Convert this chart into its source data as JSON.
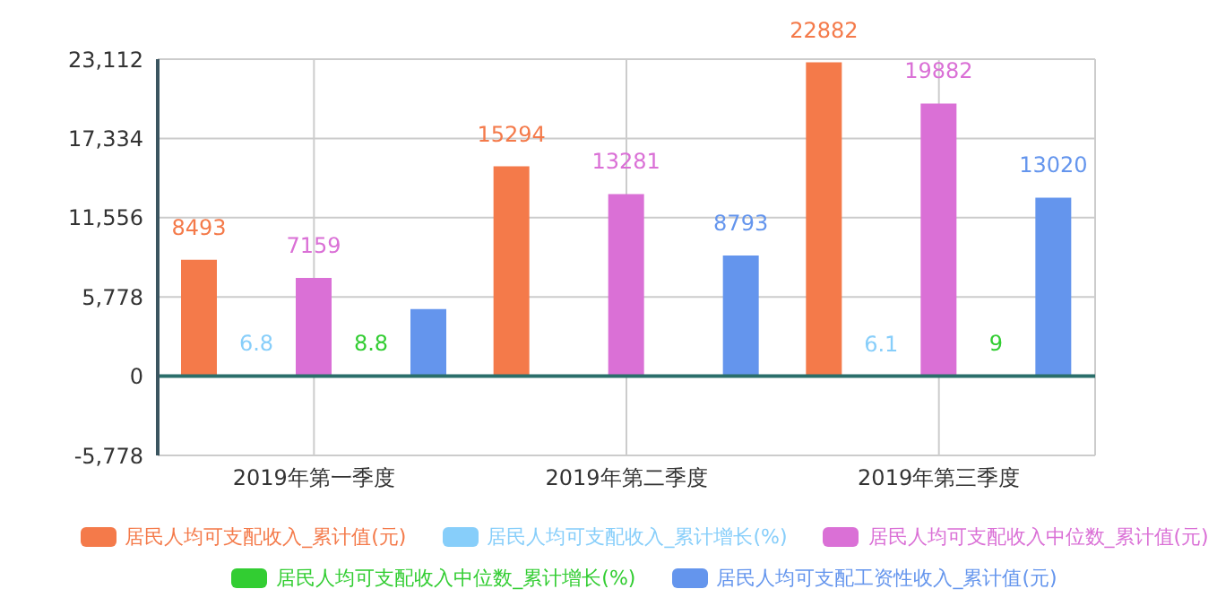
{
  "chart_data": {
    "type": "bar",
    "categories": [
      "2019年第一季度",
      "2019年第二季度",
      "2019年第三季度"
    ],
    "series": [
      {
        "name": "居民人均可支配收入_累计值(元)",
        "color": "#f47a4a",
        "values": [
          8493,
          15294,
          22882
        ],
        "value_labels": [
          "8493",
          "15294",
          "22882"
        ]
      },
      {
        "name": "居民人均可支配收入_累计增长(%)",
        "color": "#87cefa",
        "values": [
          6.8,
          null,
          6.1
        ],
        "value_labels": [
          "6.8",
          null,
          "6.1"
        ]
      },
      {
        "name": "居民人均可支配收入中位数_累计值(元)",
        "color": "#da70d6",
        "values": [
          7159,
          13281,
          19882
        ],
        "value_labels": [
          "7159",
          "13281",
          "19882"
        ]
      },
      {
        "name": "居民人均可支配收入中位数_累计增长(%)",
        "color": "#32cd32",
        "values": [
          8.8,
          null,
          9
        ],
        "value_labels": [
          "8.8",
          null,
          "9"
        ]
      },
      {
        "name": "居民人均可支配工资性收入_累计值(元)",
        "color": "#6495ed",
        "values": [
          4900,
          8793,
          13020
        ],
        "value_labels": [
          null,
          "8793",
          "13020"
        ]
      }
    ],
    "ylim": [
      -5778,
      23112
    ],
    "yticks": [
      {
        "value": -5778,
        "label": "-5,778"
      },
      0,
      {
        "value": 5778,
        "label": "5,778"
      },
      {
        "value": 11556,
        "label": "11,556"
      },
      {
        "value": 17334,
        "label": "17,334"
      },
      {
        "value": 23112,
        "label": "23,112"
      }
    ],
    "ref_lines": [
      {
        "axis": "y",
        "value": 0,
        "color": "#2a6e6a"
      }
    ],
    "grid": true,
    "legend": "bottom"
  }
}
